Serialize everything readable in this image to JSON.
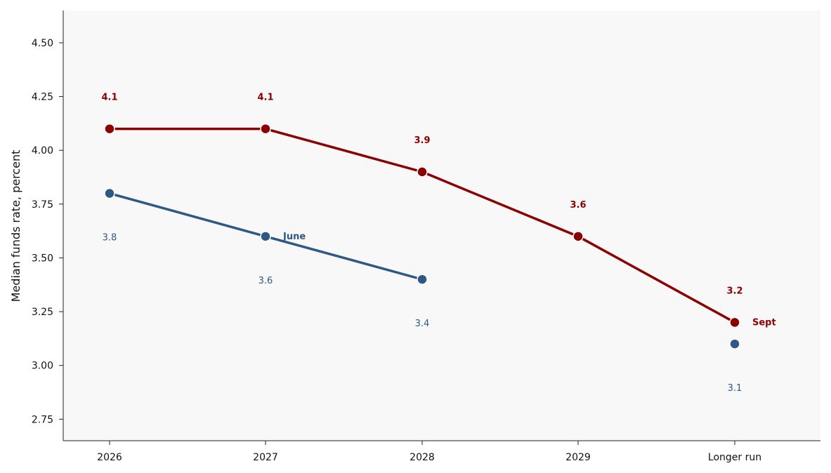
{
  "chart_data": {
    "type": "line",
    "title": "",
    "xlabel": "",
    "ylabel": "Median funds rate, percent",
    "categories": [
      "2026",
      "2027",
      "2028",
      "2029",
      "Longer run"
    ],
    "ylim": [
      2.65,
      4.65
    ],
    "yticks": [
      2.75,
      3.0,
      3.25,
      3.5,
      3.75,
      4.0,
      4.25,
      4.5
    ],
    "ytick_labels": [
      "2.75",
      "3.00",
      "3.25",
      "3.50",
      "3.75",
      "4.00",
      "4.25",
      "4.50"
    ],
    "grid": false,
    "background": "#f8f8f8",
    "series": [
      {
        "name": "Sept",
        "color": "#8b0000",
        "values": [
          4.1,
          4.1,
          3.9,
          3.6,
          3.2
        ],
        "labels": [
          "4.1",
          "4.1",
          "3.9",
          "3.6",
          "3.2"
        ],
        "connected": [
          true,
          true,
          true,
          true,
          true
        ],
        "label_position": "above",
        "bold_labels": true
      },
      {
        "name": "June",
        "color": "#2e5984",
        "values": [
          3.8,
          3.6,
          3.4,
          null,
          3.1
        ],
        "labels": [
          "3.8",
          "3.6",
          "3.4",
          "",
          "3.1"
        ],
        "connected": [
          true,
          true,
          true,
          false,
          false
        ],
        "label_position": "below",
        "bold_labels": false
      }
    ]
  }
}
